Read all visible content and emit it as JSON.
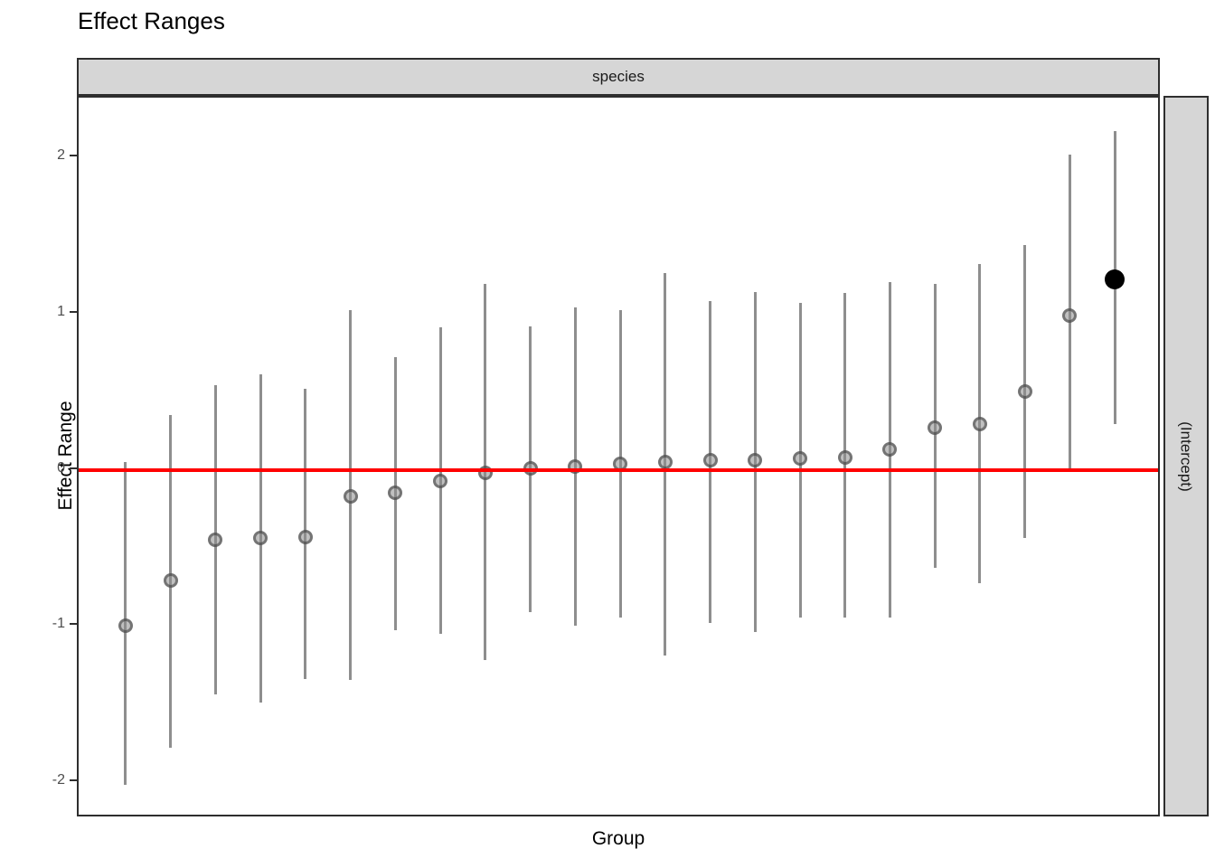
{
  "title": "Effect Ranges",
  "facet": {
    "top_label": "species",
    "right_label": "(Intercept)"
  },
  "axes": {
    "x_title": "Group",
    "y_title": "Effect Range",
    "y_ticks": [
      "2",
      "1",
      "0",
      "-1",
      "-2"
    ],
    "y_tick_values": [
      2,
      1,
      0,
      -1,
      -2
    ]
  },
  "colors": {
    "reference_line": "#FF0000",
    "interval_bar": "#8e8e8e",
    "point_fill": "rgba(140,140,140,0.55)",
    "point_stroke": "rgba(55,55,55,0.55)",
    "significant_point": "#000000",
    "strip_background": "#d6d6d6",
    "panel_border": "#2e2e2e"
  },
  "chart_data": {
    "type": "scatter",
    "subtype": "pointrange-caterpillar",
    "title": "Effect Ranges",
    "xlabel": "Group",
    "ylabel": "Effect Range",
    "facet_top": "species",
    "facet_right": "(Intercept)",
    "ylim": [
      -2.23,
      2.38
    ],
    "x_tick_labels": [],
    "grid": false,
    "legend": "none",
    "reference_line_y": 0,
    "points": [
      {
        "est": -1.0,
        "lo": -2.02,
        "hi": 0.05,
        "sig": false
      },
      {
        "est": -0.71,
        "lo": -1.78,
        "hi": 0.35,
        "sig": false
      },
      {
        "est": -0.45,
        "lo": -1.44,
        "hi": 0.54,
        "sig": false
      },
      {
        "est": -0.44,
        "lo": -1.49,
        "hi": 0.61,
        "sig": false
      },
      {
        "est": -0.43,
        "lo": -1.34,
        "hi": 0.52,
        "sig": false
      },
      {
        "est": -0.17,
        "lo": -1.35,
        "hi": 1.02,
        "sig": false
      },
      {
        "est": -0.15,
        "lo": -1.03,
        "hi": 0.72,
        "sig": false
      },
      {
        "est": -0.07,
        "lo": -1.05,
        "hi": 0.91,
        "sig": false
      },
      {
        "est": -0.02,
        "lo": -1.22,
        "hi": 1.19,
        "sig": false
      },
      {
        "est": 0.01,
        "lo": -0.91,
        "hi": 0.92,
        "sig": false
      },
      {
        "est": 0.02,
        "lo": -1.0,
        "hi": 1.04,
        "sig": false
      },
      {
        "est": 0.04,
        "lo": -0.95,
        "hi": 1.02,
        "sig": false
      },
      {
        "est": 0.05,
        "lo": -1.19,
        "hi": 1.26,
        "sig": false
      },
      {
        "est": 0.06,
        "lo": -0.98,
        "hi": 1.08,
        "sig": false
      },
      {
        "est": 0.06,
        "lo": -1.04,
        "hi": 1.14,
        "sig": false
      },
      {
        "est": 0.07,
        "lo": -0.95,
        "hi": 1.07,
        "sig": false
      },
      {
        "est": 0.08,
        "lo": -0.95,
        "hi": 1.13,
        "sig": false
      },
      {
        "est": 0.13,
        "lo": -0.95,
        "hi": 1.2,
        "sig": false
      },
      {
        "est": 0.27,
        "lo": -0.63,
        "hi": 1.19,
        "sig": false
      },
      {
        "est": 0.29,
        "lo": -0.73,
        "hi": 1.32,
        "sig": false
      },
      {
        "est": 0.5,
        "lo": -0.44,
        "hi": 1.44,
        "sig": false
      },
      {
        "est": 0.99,
        "lo": 0.0,
        "hi": 2.02,
        "sig": false
      },
      {
        "est": 1.22,
        "lo": 0.29,
        "hi": 2.17,
        "sig": true
      }
    ]
  }
}
